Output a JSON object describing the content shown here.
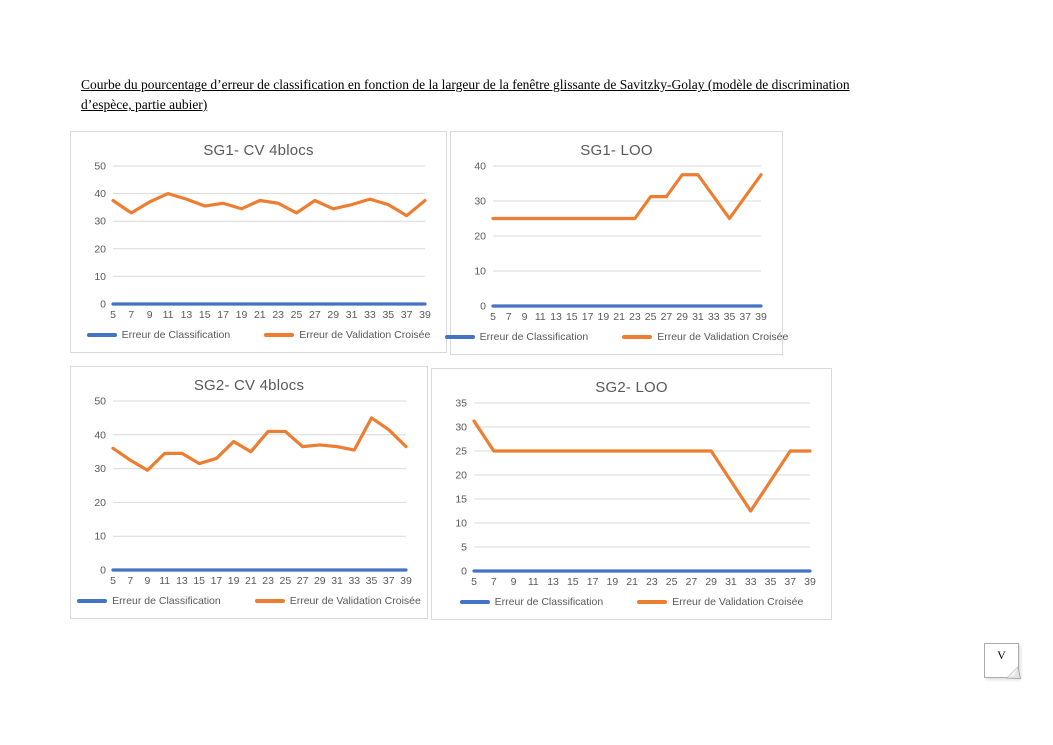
{
  "page": {
    "caption_line1": "Courbe du pourcentage d’erreur de classification en fonction de la largeur de la fenêtre glissante de Savitzky-Golay (modèle de discrimination",
    "caption_line2": "d’espèce, partie aubier)",
    "note_marker_letter": "V"
  },
  "colors": {
    "classification_blue": "#4472C4",
    "validation_orange": "#ED7D31",
    "gridline": "#D9D9D9",
    "axis_text": "#595959",
    "chart_border": "#D9D9D9",
    "title_text": "#595959"
  },
  "chart_data": [
    {
      "type": "line",
      "title": "SG1- CV 4blocs",
      "x": [
        5,
        7,
        9,
        11,
        13,
        15,
        17,
        19,
        21,
        23,
        25,
        27,
        29,
        31,
        33,
        35,
        37,
        39
      ],
      "xlabel": "",
      "ylabel": "",
      "ylim": [
        0,
        50
      ],
      "y_ticks": [
        0,
        10,
        20,
        30,
        40,
        50
      ],
      "grid": true,
      "legend_position": "bottom",
      "series": [
        {
          "name": "Erreur de Classification",
          "color": "#4472C4",
          "values": [
            0,
            0,
            0,
            0,
            0,
            0,
            0,
            0,
            0,
            0,
            0,
            0,
            0,
            0,
            0,
            0,
            0,
            0
          ]
        },
        {
          "name": "Erreur de Validation Croisée",
          "color": "#ED7D31",
          "values": [
            37.5,
            33,
            37,
            40,
            38,
            35.5,
            36.5,
            34.5,
            37.5,
            36.5,
            33,
            37.5,
            34.5,
            36,
            38,
            36,
            32,
            37.5
          ]
        }
      ]
    },
    {
      "type": "line",
      "title": "SG1- LOO",
      "x": [
        5,
        7,
        9,
        11,
        13,
        15,
        17,
        19,
        21,
        23,
        25,
        27,
        29,
        31,
        33,
        35,
        37,
        39
      ],
      "xlabel": "",
      "ylabel": "",
      "ylim": [
        0,
        40
      ],
      "y_ticks": [
        0,
        10,
        20,
        30,
        40
      ],
      "grid": true,
      "legend_position": "bottom",
      "series": [
        {
          "name": "Erreur de Classification",
          "color": "#4472C4",
          "values": [
            0,
            0,
            0,
            0,
            0,
            0,
            0,
            0,
            0,
            0,
            0,
            0,
            0,
            0,
            0,
            0,
            0,
            0
          ]
        },
        {
          "name": "Erreur de Validation Croisée",
          "color": "#ED7D31",
          "values": [
            25,
            25,
            25,
            25,
            25,
            25,
            25,
            25,
            25,
            25,
            31.25,
            31.25,
            37.5,
            37.5,
            31.25,
            25,
            31.25,
            37.5
          ]
        }
      ]
    },
    {
      "type": "line",
      "title": "SG2- CV 4blocs",
      "x": [
        5,
        7,
        9,
        11,
        13,
        15,
        17,
        19,
        21,
        23,
        25,
        27,
        29,
        31,
        33,
        35,
        37,
        39
      ],
      "xlabel": "",
      "ylabel": "",
      "ylim": [
        0,
        50
      ],
      "y_ticks": [
        0,
        10,
        20,
        30,
        40,
        50
      ],
      "grid": true,
      "legend_position": "bottom",
      "series": [
        {
          "name": "Erreur de Classification",
          "color": "#4472C4",
          "values": [
            0,
            0,
            0,
            0,
            0,
            0,
            0,
            0,
            0,
            0,
            0,
            0,
            0,
            0,
            0,
            0,
            0,
            0
          ]
        },
        {
          "name": "Erreur de Validation Croisée",
          "color": "#ED7D31",
          "values": [
            36,
            32.5,
            29.5,
            34.5,
            34.5,
            31.5,
            33,
            38,
            35,
            41,
            41,
            36.5,
            37,
            36.5,
            35.5,
            45,
            41.5,
            36.5
          ]
        }
      ]
    },
    {
      "type": "line",
      "title": "SG2- LOO",
      "x": [
        5,
        7,
        9,
        11,
        13,
        15,
        17,
        19,
        21,
        23,
        25,
        27,
        29,
        31,
        33,
        35,
        37,
        39
      ],
      "xlabel": "",
      "ylabel": "",
      "ylim": [
        0,
        35
      ],
      "y_ticks": [
        0,
        5,
        10,
        15,
        20,
        25,
        30,
        35
      ],
      "grid": true,
      "legend_position": "bottom",
      "series": [
        {
          "name": "Erreur de Classification",
          "color": "#4472C4",
          "values": [
            0,
            0,
            0,
            0,
            0,
            0,
            0,
            0,
            0,
            0,
            0,
            0,
            0,
            0,
            0,
            0,
            0,
            0
          ]
        },
        {
          "name": "Erreur de Validation Croisée",
          "color": "#ED7D31",
          "values": [
            31.25,
            25,
            25,
            25,
            25,
            25,
            25,
            25,
            25,
            25,
            25,
            25,
            25,
            18.75,
            12.5,
            18.75,
            25,
            25
          ]
        }
      ]
    }
  ]
}
